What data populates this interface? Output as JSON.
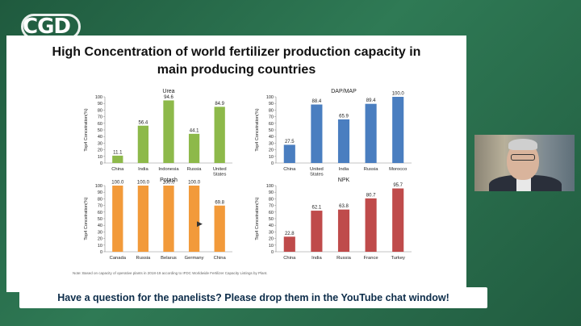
{
  "logo": {
    "text": "CGD"
  },
  "slide": {
    "title": "High Concentration of world fertilizer production capacity in main producing countries",
    "footnote": "Note: Based on capacity of operative plants in 2018-19 according to IFDC Worldwide Fertilizer Capacity Listings by Plant."
  },
  "banner": {
    "text": "Have a question for the panelists? Please drop them in the YouTube chat window!"
  },
  "colors": {
    "urea": "#8db94a",
    "dapmap": "#4a7ec0",
    "potash": "#f29a3a",
    "npk": "#bf4b4b"
  },
  "chart_data": [
    {
      "type": "bar",
      "title": "Urea",
      "ylabel": "Top4 Concetration(%)",
      "categories": [
        "China",
        "India",
        "Indonesia",
        "Russia",
        "United States"
      ],
      "values": [
        11.1,
        56.4,
        94.6,
        44.1,
        84.9
      ],
      "labels": [
        "11.1",
        "56.4",
        "94.6",
        "44.1",
        "84.9"
      ],
      "ylim": [
        0,
        100
      ],
      "yticks": [
        "0",
        "10",
        "20",
        "30",
        "40",
        "50",
        "60",
        "70",
        "80",
        "90",
        "100"
      ],
      "color": "#8db94a"
    },
    {
      "type": "bar",
      "title": "DAP/MAP",
      "ylabel": "Top4 Concetration(%)",
      "categories": [
        "China",
        "United States",
        "India",
        "Russia",
        "Morocco"
      ],
      "values": [
        27.5,
        88.4,
        65.9,
        89.4,
        100.0
      ],
      "labels": [
        "27.5",
        "88.4",
        "65.9",
        "89.4",
        "100.0"
      ],
      "ylim": [
        0,
        100
      ],
      "yticks": [
        "0",
        "10",
        "20",
        "30",
        "40",
        "50",
        "60",
        "70",
        "80",
        "90",
        "100"
      ],
      "color": "#4a7ec0"
    },
    {
      "type": "bar",
      "title": "Potash",
      "ylabel": "Top4 Concetration(%)",
      "categories": [
        "Canada",
        "Russia",
        "Belarus",
        "Germany",
        "China"
      ],
      "values": [
        100.0,
        100.0,
        100.0,
        100.0,
        69.8
      ],
      "labels": [
        "100.0",
        "100.0",
        "100.0",
        "100.0",
        "69.8"
      ],
      "ylim": [
        0,
        100
      ],
      "yticks": [
        "0",
        "10",
        "20",
        "30",
        "40",
        "50",
        "60",
        "70",
        "80",
        "90",
        "100"
      ],
      "color": "#f29a3a"
    },
    {
      "type": "bar",
      "title": "NPK",
      "ylabel": "Top4 Concetration(%)",
      "categories": [
        "China",
        "India",
        "Russia",
        "France",
        "Turkey"
      ],
      "values": [
        22.8,
        62.1,
        63.8,
        80.7,
        95.7
      ],
      "labels": [
        "22.8",
        "62.1",
        "63.8",
        "80.7",
        "95.7"
      ],
      "ylim": [
        0,
        100
      ],
      "yticks": [
        "0",
        "10",
        "20",
        "30",
        "40",
        "50",
        "60",
        "70",
        "80",
        "90",
        "100"
      ],
      "color": "#bf4b4b"
    }
  ]
}
